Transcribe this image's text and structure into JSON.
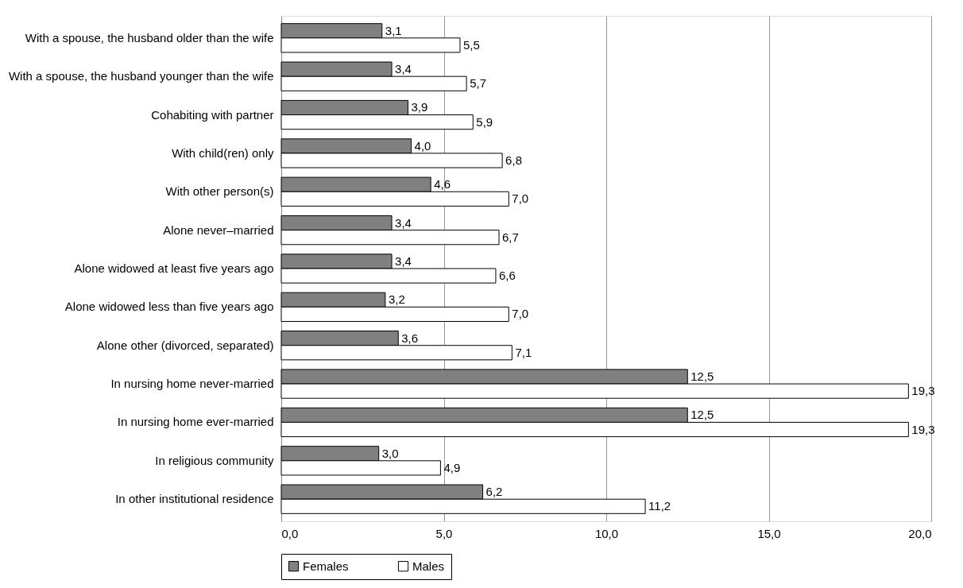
{
  "chart_data": {
    "type": "bar",
    "orientation": "horizontal",
    "categories": [
      "With a spouse, the husband older than the wife",
      "With a spouse, the husband younger than the wife",
      "Cohabiting with partner",
      "With child(ren) only",
      "With other person(s)",
      "Alone never–married",
      "Alone widowed at least five years ago",
      "Alone widowed less than five years ago",
      "Alone other (divorced, separated)",
      "In nursing home never-married",
      "In nursing home ever-married",
      "In religious community",
      "In other institutional residence"
    ],
    "series": [
      {
        "name": "Females",
        "color": "#808080",
        "values": [
          3.1,
          3.4,
          3.9,
          4.0,
          4.6,
          3.4,
          3.4,
          3.2,
          3.6,
          12.5,
          12.5,
          3.0,
          6.2
        ],
        "value_labels": [
          "3,1",
          "3,4",
          "3,9",
          "4,0",
          "4,6",
          "3,4",
          "3,4",
          "3,2",
          "3,6",
          "12,5",
          "12,5",
          "3,0",
          "6,2"
        ]
      },
      {
        "name": "Males",
        "color": "#ffffff",
        "values": [
          5.5,
          5.7,
          5.9,
          6.8,
          7.0,
          6.7,
          6.6,
          7.0,
          7.1,
          19.3,
          19.3,
          4.9,
          11.2
        ],
        "value_labels": [
          "5,5",
          "5,7",
          "5,9",
          "6,8",
          "7,0",
          "6,7",
          "6,6",
          "7,0",
          "7,1",
          "19,3",
          "19,3",
          "4,9",
          "11,2"
        ]
      }
    ],
    "xlim": [
      0,
      20
    ],
    "xticks": [
      {
        "value": 0,
        "label": "0,0"
      },
      {
        "value": 5,
        "label": "5,0"
      },
      {
        "value": 10,
        "label": "10,0"
      },
      {
        "value": 15,
        "label": "15,0"
      },
      {
        "value": 20,
        "label": "20,0"
      }
    ],
    "grid": "x",
    "legend": "bottom"
  }
}
